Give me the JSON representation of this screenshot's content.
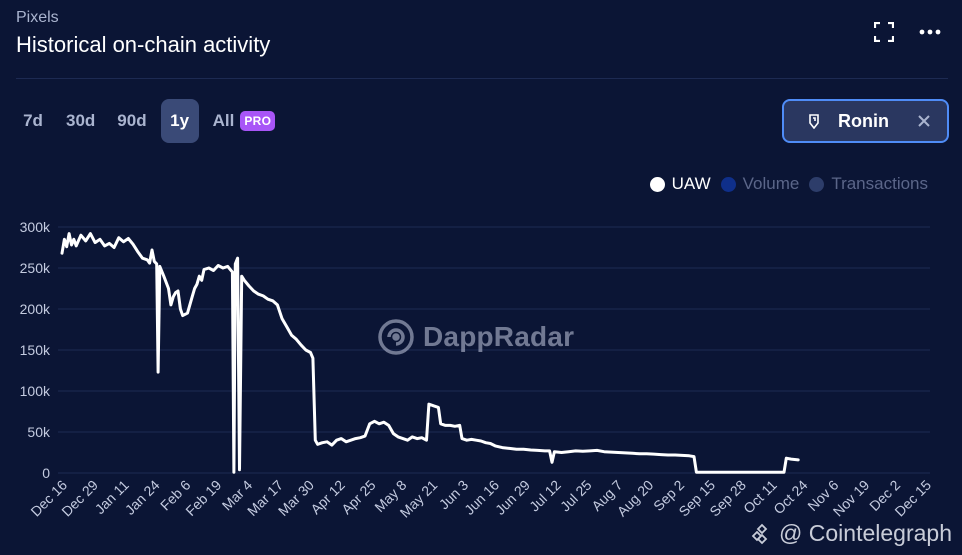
{
  "header": {
    "app_name": "Pixels",
    "title": "Historical on-chain activity"
  },
  "icons": {
    "expand": "expand-icon",
    "more": "more-horizontal-icon"
  },
  "ranges": [
    {
      "label": "7d",
      "active": false
    },
    {
      "label": "30d",
      "active": false
    },
    {
      "label": "90d",
      "active": false
    },
    {
      "label": "1y",
      "active": true
    },
    {
      "label": "All",
      "active": false
    }
  ],
  "pro_badge": "PRO",
  "chain_filter": {
    "label": "Ronin"
  },
  "legend": [
    {
      "name": "UAW",
      "color": "#ffffff",
      "active": true
    },
    {
      "name": "Volume",
      "color": "#0f2f8a",
      "active": false
    },
    {
      "name": "Transactions",
      "color": "#2d3d6a",
      "active": false
    }
  ],
  "watermark": "DappRadar",
  "credit": "@ Cointelegraph",
  "colors": {
    "background": "#0b1535",
    "grid": "#1d2a52",
    "line": "#ffffff",
    "axis_text": "#c4cbe0"
  },
  "chart_data": {
    "type": "line",
    "title": "Historical on-chain activity",
    "series_name": "UAW",
    "xlabel": "",
    "ylabel": "",
    "ylim": [
      0,
      300000
    ],
    "y_ticks": [
      0,
      50000,
      100000,
      150000,
      200000,
      250000,
      300000
    ],
    "y_tick_labels": [
      "0",
      "50k",
      "100k",
      "150k",
      "200k",
      "250k",
      "300k"
    ],
    "x_tick_labels": [
      "Dec 16",
      "Dec 29",
      "Jan 11",
      "Jan 24",
      "Feb 6",
      "Feb 19",
      "Mar 4",
      "Mar 17",
      "Mar 30",
      "Apr 12",
      "Apr 25",
      "May 8",
      "May 21",
      "Jun 3",
      "Jun 16",
      "Jun 29",
      "Jul 12",
      "Jul 25",
      "Aug 7",
      "Aug 20",
      "Sep 2",
      "Sep 15",
      "Sep 28",
      "Oct 11",
      "Oct 24",
      "Nov 6",
      "Nov 19",
      "Dec 2",
      "Dec 15"
    ],
    "x_range_days": [
      0,
      365
    ],
    "points": [
      [
        0,
        268000
      ],
      [
        1,
        285000
      ],
      [
        2,
        276000
      ],
      [
        3,
        292000
      ],
      [
        4,
        278000
      ],
      [
        5,
        285000
      ],
      [
        6,
        277000
      ],
      [
        8,
        290000
      ],
      [
        10,
        283000
      ],
      [
        12,
        292000
      ],
      [
        14,
        281000
      ],
      [
        16,
        285000
      ],
      [
        18,
        277000
      ],
      [
        20,
        280000
      ],
      [
        22,
        275000
      ],
      [
        24,
        287000
      ],
      [
        26,
        282000
      ],
      [
        28,
        286000
      ],
      [
        30,
        279000
      ],
      [
        32,
        270000
      ],
      [
        34,
        262000
      ],
      [
        36,
        260000
      ],
      [
        37,
        256000
      ],
      [
        38,
        272000
      ],
      [
        39,
        258000
      ],
      [
        40,
        255000
      ],
      [
        40.6,
        123000
      ],
      [
        41.3,
        252000
      ],
      [
        43,
        240000
      ],
      [
        45,
        225000
      ],
      [
        46,
        205000
      ],
      [
        47,
        215000
      ],
      [
        48,
        220000
      ],
      [
        49,
        222000
      ],
      [
        50,
        200000
      ],
      [
        51,
        192000
      ],
      [
        53,
        195000
      ],
      [
        55,
        215000
      ],
      [
        56,
        225000
      ],
      [
        57,
        230000
      ],
      [
        58,
        240000
      ],
      [
        59,
        235000
      ],
      [
        60,
        248000
      ],
      [
        62,
        250000
      ],
      [
        64,
        247000
      ],
      [
        66,
        253000
      ],
      [
        68,
        250000
      ],
      [
        70,
        252000
      ],
      [
        72,
        245000
      ],
      [
        72.6,
        1000
      ],
      [
        73.2,
        255000
      ],
      [
        74.2,
        262000
      ],
      [
        75,
        4000
      ],
      [
        75.9,
        240000
      ],
      [
        77,
        235000
      ],
      [
        79,
        228000
      ],
      [
        81,
        222000
      ],
      [
        83,
        218000
      ],
      [
        85,
        216000
      ],
      [
        87,
        212000
      ],
      [
        89,
        210000
      ],
      [
        91,
        205000
      ],
      [
        93,
        188000
      ],
      [
        95,
        178000
      ],
      [
        97,
        168000
      ],
      [
        99,
        163000
      ],
      [
        101,
        156000
      ],
      [
        103,
        150000
      ],
      [
        105,
        147000
      ],
      [
        106,
        140000
      ],
      [
        107,
        40000
      ],
      [
        108,
        35000
      ],
      [
        110,
        37000
      ],
      [
        112,
        38000
      ],
      [
        114,
        34000
      ],
      [
        116,
        40000
      ],
      [
        118,
        42000
      ],
      [
        120,
        38000
      ],
      [
        122,
        40000
      ],
      [
        124,
        42000
      ],
      [
        126,
        43000
      ],
      [
        128,
        45000
      ],
      [
        130,
        60000
      ],
      [
        132,
        63000
      ],
      [
        134,
        60000
      ],
      [
        136,
        62000
      ],
      [
        138,
        58000
      ],
      [
        140,
        48000
      ],
      [
        142,
        44000
      ],
      [
        144,
        42000
      ],
      [
        146,
        40000
      ],
      [
        148,
        44000
      ],
      [
        150,
        42000
      ],
      [
        152,
        43000
      ],
      [
        154,
        40000
      ],
      [
        155,
        84000
      ],
      [
        157,
        82000
      ],
      [
        159,
        80000
      ],
      [
        160,
        60000
      ],
      [
        162,
        58000
      ],
      [
        164,
        58000
      ],
      [
        166,
        57000
      ],
      [
        168,
        58000
      ],
      [
        169,
        42000
      ],
      [
        171,
        40000
      ],
      [
        173,
        41000
      ],
      [
        175,
        40000
      ],
      [
        177,
        39000
      ],
      [
        179,
        37000
      ],
      [
        181,
        36000
      ],
      [
        183,
        33000
      ],
      [
        186,
        31000
      ],
      [
        189,
        30000
      ],
      [
        192,
        29000
      ],
      [
        195,
        29000
      ],
      [
        198,
        28000
      ],
      [
        201,
        27500
      ],
      [
        204,
        27000
      ],
      [
        206,
        27000
      ],
      [
        207,
        13000
      ],
      [
        208,
        26000
      ],
      [
        211,
        25000
      ],
      [
        214,
        26000
      ],
      [
        217,
        27000
      ],
      [
        220,
        26500
      ],
      [
        223,
        27000
      ],
      [
        226,
        27500
      ],
      [
        229,
        26000
      ],
      [
        232,
        25500
      ],
      [
        235,
        25000
      ],
      [
        238,
        24500
      ],
      [
        241,
        24000
      ],
      [
        244,
        23500
      ],
      [
        247,
        23500
      ],
      [
        250,
        23000
      ],
      [
        253,
        22500
      ],
      [
        256,
        22000
      ],
      [
        259,
        22000
      ],
      [
        262,
        21500
      ],
      [
        265,
        21000
      ],
      [
        267,
        20000
      ],
      [
        268,
        1000
      ],
      [
        276,
        1000
      ],
      [
        284,
        1000
      ],
      [
        292,
        1000
      ],
      [
        300,
        1000
      ],
      [
        305,
        1000
      ],
      [
        306,
        18000
      ],
      [
        308,
        17000
      ],
      [
        311,
        16000
      ]
    ]
  }
}
